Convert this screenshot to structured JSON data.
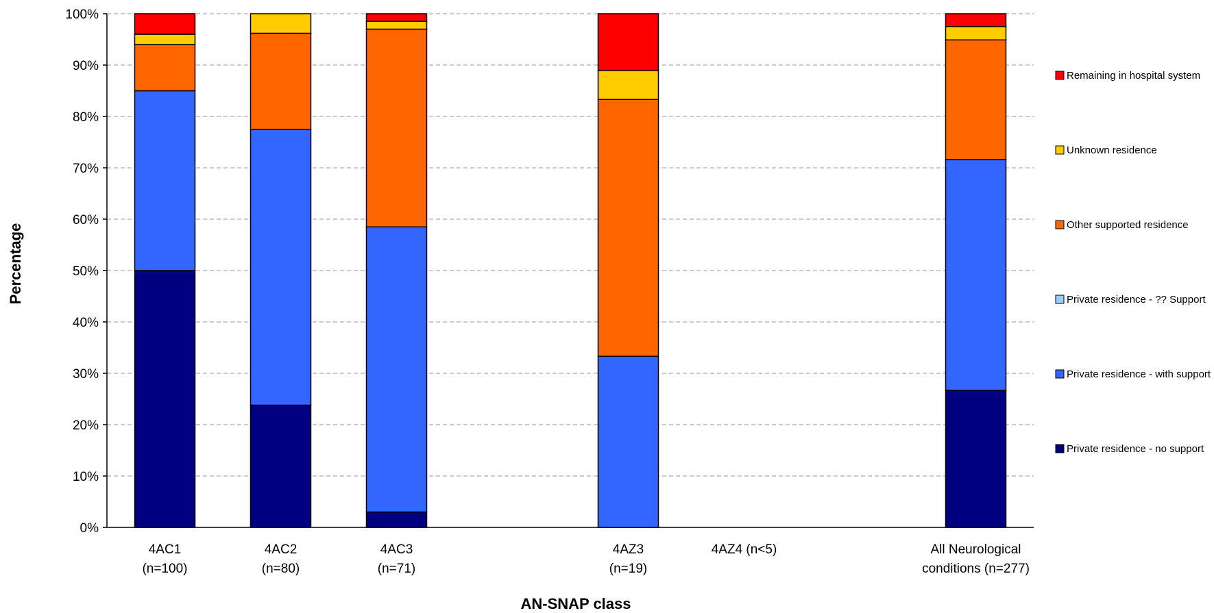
{
  "chart_data": {
    "type": "bar",
    "stacked": true,
    "percent": true,
    "xlabel": "AN-SNAP class",
    "ylabel": "Percentage",
    "ylim": [
      0,
      100
    ],
    "yticks": [
      "0%",
      "10%",
      "20%",
      "30%",
      "40%",
      "50%",
      "60%",
      "70%",
      "80%",
      "90%",
      "100%"
    ],
    "grid": "horizontal dashed",
    "legend_position": "right",
    "categories": [
      {
        "lines": [
          "4AC1",
          "(n=100)"
        ]
      },
      {
        "lines": [
          "4AC2",
          "(n=80)"
        ]
      },
      {
        "lines": [
          "4AC3",
          "(n=71)"
        ]
      },
      {
        "lines": [
          "",
          ""
        ]
      },
      {
        "lines": [
          "4AZ3",
          "(n=19)"
        ]
      },
      {
        "lines": [
          "4AZ4 (n<5)"
        ]
      },
      {
        "lines": [
          "",
          ""
        ]
      },
      {
        "lines": [
          "All Neurological",
          "conditions (n=277)"
        ]
      }
    ],
    "series": [
      {
        "name": "Private residence - no support",
        "color": "#000080",
        "values": [
          50.0,
          23.8,
          3.0,
          0,
          0,
          0,
          0,
          26.7
        ]
      },
      {
        "name": "Private residence - with support",
        "color": "#3366FF",
        "values": [
          35.0,
          53.7,
          55.5,
          0,
          33.3,
          0,
          0,
          44.9
        ]
      },
      {
        "name": "Private residence - ?? Support",
        "color": "#99CCFF",
        "values": [
          0,
          0,
          0,
          0,
          0,
          0,
          0,
          0
        ]
      },
      {
        "name": "Other supported residence",
        "color": "#FF6600",
        "values": [
          9.0,
          18.7,
          38.5,
          0,
          50.0,
          0,
          0,
          23.3
        ]
      },
      {
        "name": "Unknown residence",
        "color": "#FFCC00",
        "values": [
          2.0,
          3.8,
          1.5,
          0,
          5.6,
          0,
          0,
          2.6
        ]
      },
      {
        "name": "Remaining in hospital system",
        "color": "#FF0000",
        "values": [
          4.0,
          0,
          1.5,
          0,
          11.1,
          0,
          0,
          2.5
        ]
      }
    ]
  }
}
